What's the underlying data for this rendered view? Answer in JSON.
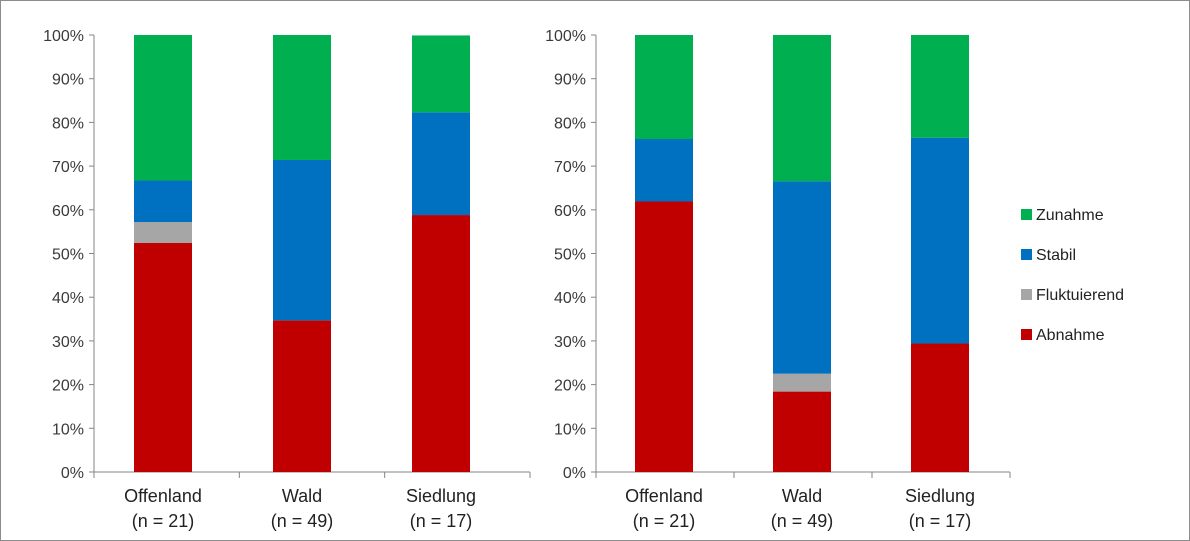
{
  "chart_data": [
    {
      "type": "bar",
      "stacked": true,
      "percent": true,
      "categories": [
        [
          "Offenland",
          "(n = 21)"
        ],
        [
          "Wald",
          "(n = 49)"
        ],
        [
          "Siedlung",
          "(n = 17)"
        ]
      ],
      "series": [
        {
          "name": "Abnahme",
          "values": [
            52.4,
            34.7,
            58.8
          ]
        },
        {
          "name": "Fluktuierend",
          "values": [
            4.8,
            0,
            0
          ]
        },
        {
          "name": "Stabil",
          "values": [
            9.5,
            36.7,
            23.5
          ]
        },
        {
          "name": "Zunahme",
          "values": [
            33.3,
            28.6,
            17.6
          ]
        }
      ],
      "ylim": [
        0,
        100
      ],
      "yticks": [
        "0%",
        "10%",
        "20%",
        "30%",
        "40%",
        "50%",
        "60%",
        "70%",
        "80%",
        "90%",
        "100%"
      ],
      "grid": false
    },
    {
      "type": "bar",
      "stacked": true,
      "percent": true,
      "categories": [
        [
          "Offenland",
          "(n = 21)"
        ],
        [
          "Wald",
          "(n = 49)"
        ],
        [
          "Siedlung",
          "(n = 17)"
        ]
      ],
      "series": [
        {
          "name": "Abnahme",
          "values": [
            61.9,
            18.4,
            29.4
          ]
        },
        {
          "name": "Fluktuierend",
          "values": [
            0,
            4.1,
            0
          ]
        },
        {
          "name": "Stabil",
          "values": [
            14.3,
            44.0,
            47.1
          ]
        },
        {
          "name": "Zunahme",
          "values": [
            23.8,
            33.5,
            23.5
          ]
        }
      ],
      "ylim": [
        0,
        100
      ],
      "yticks": [
        "0%",
        "10%",
        "20%",
        "30%",
        "40%",
        "50%",
        "60%",
        "70%",
        "80%",
        "90%",
        "100%"
      ],
      "grid": false
    }
  ],
  "legend": {
    "placement": "right",
    "items": [
      {
        "label": "Zunahme",
        "color": "#00b050"
      },
      {
        "label": "Stabil",
        "color": "#0070c0"
      },
      {
        "label": "Fluktuierend",
        "color": "#a6a6a6"
      },
      {
        "label": "Abnahme",
        "color": "#c00000"
      }
    ]
  },
  "colors": {
    "Abnahme": "#c00000",
    "Fluktuierend": "#a6a6a6",
    "Stabil": "#0070c0",
    "Zunahme": "#00b050"
  }
}
